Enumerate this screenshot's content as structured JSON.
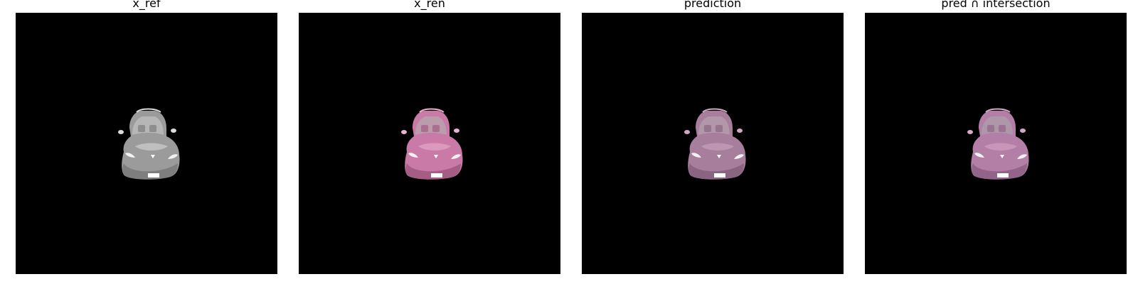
{
  "panels": [
    {
      "title": "x_ref",
      "body_color": "#9b9b9b",
      "shade_color": "#7e7e7e",
      "glass_color": "#b9b9b9",
      "highlight_color": "#dcdcdc"
    },
    {
      "title": "x_ren",
      "body_color": "#c97aa6",
      "shade_color": "#a55d86",
      "glass_color": "#b8a0ae",
      "highlight_color": "#eab2cf"
    },
    {
      "title": "prediction",
      "body_color": "#a77e9c",
      "shade_color": "#8a6581",
      "glass_color": "#b39aab",
      "highlight_color": "#cfa9c4"
    },
    {
      "title": "pred ∩ intersection",
      "body_color": "#b47fa6",
      "shade_color": "#93648a",
      "glass_color": "#ad9aa8",
      "highlight_color": "#d7a9c9"
    }
  ]
}
